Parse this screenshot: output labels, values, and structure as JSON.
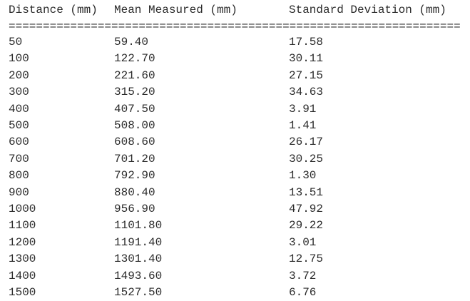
{
  "table": {
    "columns": [
      "Distance (mm)",
      "Mean Measured (mm)",
      "Standard Deviation (mm)"
    ],
    "separator": "==================================================================",
    "rows": [
      [
        "50",
        "59.40",
        "17.58"
      ],
      [
        "100",
        "122.70",
        "30.11"
      ],
      [
        "200",
        "221.60",
        "27.15"
      ],
      [
        "300",
        "315.20",
        "34.63"
      ],
      [
        "400",
        "407.50",
        "3.91"
      ],
      [
        "500",
        "508.00",
        "1.41"
      ],
      [
        "600",
        "608.60",
        "26.17"
      ],
      [
        "700",
        "701.20",
        "30.25"
      ],
      [
        "800",
        "792.90",
        "1.30"
      ],
      [
        "900",
        "880.40",
        "13.51"
      ],
      [
        "1000",
        "956.90",
        "47.92"
      ],
      [
        "1100",
        "1101.80",
        "29.22"
      ],
      [
        "1200",
        "1191.40",
        "3.01"
      ],
      [
        "1300",
        "1301.40",
        "12.75"
      ],
      [
        "1400",
        "1493.60",
        "3.72"
      ],
      [
        "1500",
        "1527.50",
        "6.76"
      ]
    ]
  }
}
